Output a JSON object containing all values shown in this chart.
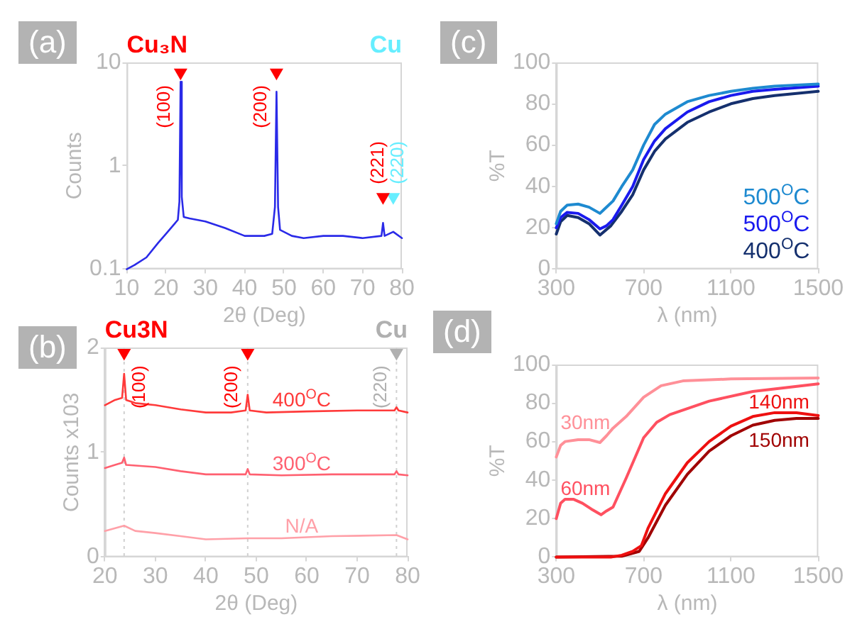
{
  "chart_data": [
    {
      "type": "line",
      "title": "(a)",
      "xlabel": "2θ (Deg)",
      "ylabel": "Counts",
      "log": true,
      "xlim": [
        10,
        80
      ],
      "xticks": [
        10,
        20,
        30,
        40,
        50,
        60,
        70,
        80
      ],
      "ylim": [
        0.1,
        10
      ],
      "yticks": [
        0.1,
        1,
        10
      ],
      "series": [
        {
          "color": "#2a2ae8",
          "x": [
            10,
            12,
            15,
            18,
            20,
            22,
            23,
            23.4,
            23.7,
            24.0,
            24.5,
            26,
            30,
            35,
            40,
            45,
            47,
            47.7,
            48.1,
            48.5,
            49,
            52,
            55,
            60,
            65,
            70,
            74.8,
            75.2,
            75.6,
            77.8,
            80
          ],
          "values": [
            0.1,
            0.11,
            0.13,
            0.18,
            0.22,
            0.27,
            0.3,
            0.45,
            6.5,
            0.5,
            0.32,
            0.31,
            0.29,
            0.25,
            0.21,
            0.21,
            0.22,
            0.4,
            5.2,
            0.4,
            0.24,
            0.21,
            0.2,
            0.21,
            0.21,
            0.2,
            0.21,
            0.28,
            0.21,
            0.23,
            0.2
          ]
        },
        {
          "type": "scatter",
          "marker": "triangle",
          "name": "Cu₃N",
          "color": "#ff0000",
          "x": [
            23.7,
            48.1,
            75.2
          ],
          "values": [
            8,
            8,
            0.5
          ]
        },
        {
          "type": "scatter",
          "marker": "triangle",
          "name": "Cu",
          "color": "#66eeff",
          "x": [
            77.8
          ],
          "values": [
            0.5
          ]
        }
      ],
      "annotations": [
        {
          "text": "(100)",
          "x": 23.7,
          "y": 8
        },
        {
          "text": "(200)",
          "x": 48.1,
          "y": 8
        },
        {
          "text": "(221)",
          "x": 75.2,
          "y": 0.5
        },
        {
          "text": "(220)",
          "x": 77.8,
          "y": 0.5
        }
      ]
    },
    {
      "type": "line",
      "title": "(b)",
      "xlabel": "2θ (Deg)",
      "ylabel": "Counts x103",
      "xlim": [
        20,
        80
      ],
      "xticks": [
        20,
        30,
        40,
        50,
        60,
        70,
        80
      ],
      "ylim": [
        0,
        2
      ],
      "yticks": [
        0,
        1,
        2
      ],
      "ref_lines": [
        {
          "axis": "x",
          "value": 23.8,
          "color": "#d0d0d0",
          "line_style": "dotted"
        },
        {
          "axis": "x",
          "value": 48.3,
          "color": "#d0d0d0",
          "line_style": "dotted"
        },
        {
          "axis": "x",
          "value": 77.8,
          "color": "#d0d0d0",
          "line_style": "dotted"
        }
      ],
      "series": [
        {
          "name": "400$^{O}$C",
          "color": "#ff3a3a",
          "x": [
            20,
            22,
            23.4,
            23.8,
            24.2,
            26,
            30,
            35,
            40,
            45,
            47.9,
            48.3,
            48.7,
            52,
            60,
            70,
            77.4,
            77.8,
            78.2,
            80
          ],
          "values": [
            1.45,
            1.5,
            1.52,
            1.75,
            1.5,
            1.47,
            1.45,
            1.41,
            1.38,
            1.38,
            1.4,
            1.55,
            1.4,
            1.38,
            1.39,
            1.4,
            1.4,
            1.43,
            1.4,
            1.38
          ]
        },
        {
          "name": "300$^{O}$C",
          "color": "#ff6070",
          "x": [
            20,
            22,
            23.4,
            23.8,
            24.2,
            30,
            35,
            40,
            45,
            47.9,
            48.3,
            48.7,
            55,
            65,
            77.4,
            77.8,
            78.2,
            80
          ],
          "values": [
            0.85,
            0.88,
            0.9,
            0.95,
            0.88,
            0.86,
            0.82,
            0.79,
            0.79,
            0.79,
            0.84,
            0.79,
            0.78,
            0.79,
            0.79,
            0.82,
            0.79,
            0.78
          ]
        },
        {
          "name": "N/A",
          "color": "#ffa0a8",
          "x": [
            20,
            23.8,
            26,
            30,
            35,
            40,
            48.3,
            55,
            65,
            77.8,
            80
          ],
          "values": [
            0.25,
            0.3,
            0.25,
            0.23,
            0.2,
            0.17,
            0.18,
            0.18,
            0.2,
            0.21,
            0.17
          ]
        },
        {
          "type": "scatter",
          "marker": "triangle",
          "name": "Cu3N",
          "color": "#ff0000",
          "x": [
            23.8,
            48.3
          ],
          "values": [
            1.95,
            1.95
          ]
        },
        {
          "type": "scatter",
          "marker": "triangle",
          "name": "Cu",
          "color": "#b0b0b0",
          "x": [
            77.8
          ],
          "values": [
            1.95
          ]
        }
      ],
      "annotations": [
        {
          "text": "(100)",
          "x": 23.8,
          "y": 1.95
        },
        {
          "text": "(200)",
          "x": 48.3,
          "y": 1.95
        },
        {
          "text": "(220)",
          "x": 77.8,
          "y": 1.95
        }
      ]
    },
    {
      "type": "line",
      "title": "(c)",
      "xlabel": "λ (nm)",
      "ylabel": "%T",
      "xlim": [
        300,
        1500
      ],
      "xticks": [
        300,
        700,
        1100,
        1500
      ],
      "ylim": [
        0,
        100
      ],
      "yticks": [
        0,
        20,
        40,
        60,
        80,
        100
      ],
      "legend": "bottom right",
      "series": [
        {
          "name": "500$^{O}$C",
          "color": "#1e8ad0",
          "x": [
            300,
            320,
            350,
            400,
            450,
            500,
            520,
            560,
            600,
            650,
            700,
            750,
            800,
            900,
            1000,
            1100,
            1200,
            1300,
            1500
          ],
          "values": [
            22,
            28,
            31,
            31.5,
            30,
            27,
            29,
            33,
            40,
            48,
            60,
            70,
            75,
            81,
            84,
            86,
            87.5,
            88.5,
            89.5
          ]
        },
        {
          "name": "500$^{O}$C",
          "color": "#1a1aee",
          "x": [
            300,
            320,
            350,
            400,
            450,
            500,
            530,
            560,
            600,
            650,
            700,
            750,
            800,
            900,
            1000,
            1100,
            1200,
            1300,
            1500
          ],
          "values": [
            20,
            25,
            27.5,
            27,
            24,
            19.5,
            21,
            24,
            31,
            40,
            53,
            62,
            68,
            76,
            81,
            84,
            86,
            87,
            88.5
          ]
        },
        {
          "name": "400$^{O}$C",
          "color": "#15306e",
          "x": [
            300,
            320,
            350,
            400,
            450,
            500,
            550,
            600,
            650,
            700,
            750,
            800,
            900,
            1000,
            1100,
            1200,
            1300,
            1500
          ],
          "values": [
            17,
            23,
            26,
            25,
            22,
            16.5,
            21,
            28,
            36,
            48,
            57,
            63,
            71,
            76,
            80,
            82.5,
            84,
            86
          ]
        }
      ]
    },
    {
      "type": "line",
      "title": "(d)",
      "xlabel": "λ (nm)",
      "ylabel": "%T",
      "xlim": [
        300,
        1500
      ],
      "xticks": [
        300,
        700,
        1100,
        1500
      ],
      "ylim": [
        0,
        100
      ],
      "yticks": [
        0,
        20,
        40,
        60,
        80,
        100
      ],
      "series": [
        {
          "name": "30nm",
          "color": "#ff9098",
          "x": [
            300,
            320,
            340,
            400,
            450,
            500,
            530,
            560,
            620,
            700,
            780,
            880,
            1100,
            1500
          ],
          "values": [
            52,
            58,
            60,
            61,
            61,
            59.5,
            63,
            67,
            73,
            83,
            89,
            91.5,
            92.5,
            93
          ]
        },
        {
          "name": "60nm",
          "color": "#ff5060",
          "x": [
            300,
            320,
            340,
            380,
            420,
            460,
            505,
            530,
            560,
            620,
            700,
            760,
            820,
            1000,
            1200,
            1500
          ],
          "values": [
            20,
            28,
            30,
            30,
            28,
            25,
            22,
            24,
            26,
            41,
            62,
            70,
            74,
            81,
            86,
            90
          ]
        },
        {
          "name": "140nm",
          "color": "#ee1010",
          "x": [
            300,
            550,
            600,
            650,
            690,
            720,
            800,
            900,
            1000,
            1100,
            1200,
            1300,
            1400,
            1500
          ],
          "values": [
            0,
            0,
            1,
            3,
            6,
            15,
            33,
            49,
            60,
            68,
            73,
            75,
            75,
            73.5
          ]
        },
        {
          "name": "150nm",
          "color": "#a00000",
          "x": [
            300,
            600,
            680,
            720,
            800,
            900,
            1000,
            1100,
            1200,
            1300,
            1400,
            1500
          ],
          "values": [
            0,
            0.5,
            3,
            10,
            27,
            43,
            55,
            63,
            68.5,
            71,
            72,
            72
          ]
        }
      ]
    }
  ]
}
